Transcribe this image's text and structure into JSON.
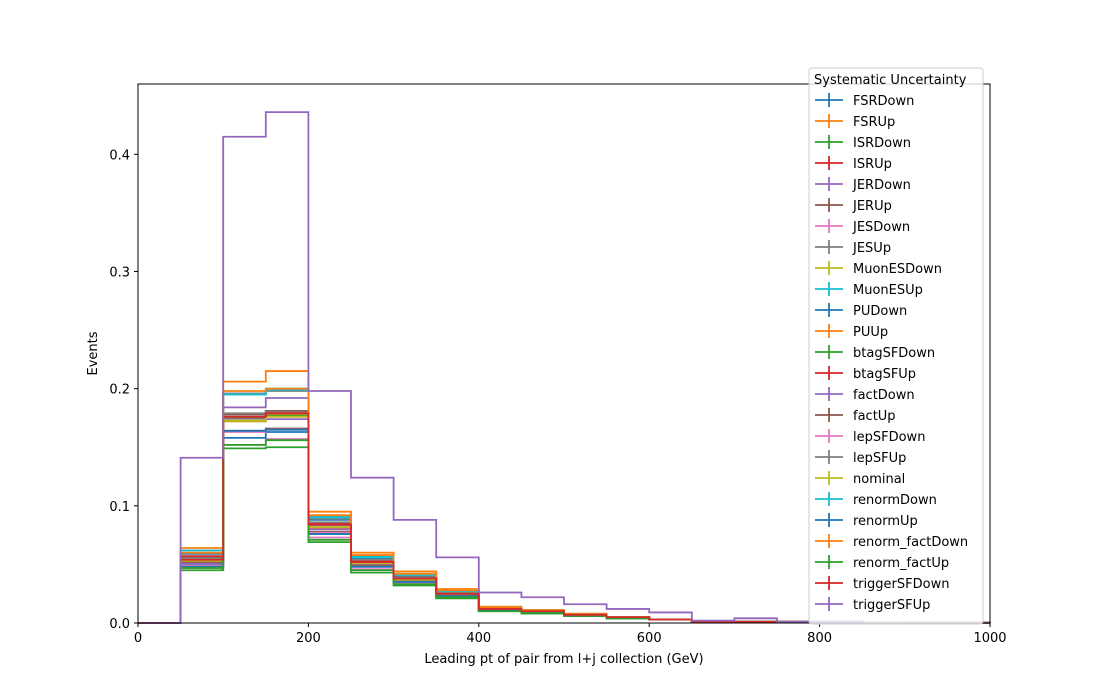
{
  "chart_data": {
    "type": "line",
    "title": "",
    "xlabel": "Leading pt of pair from l+j collection (GeV)",
    "ylabel": "Events",
    "xlim": [
      0,
      1000
    ],
    "ylim": [
      0,
      0.46
    ],
    "x_ticks": [
      0,
      200,
      400,
      600,
      800,
      1000
    ],
    "y_ticks": [
      0.0,
      0.1,
      0.2,
      0.3,
      0.4
    ],
    "x_tick_labels": [
      "0",
      "200",
      "400",
      "600",
      "800",
      "1000"
    ],
    "y_tick_labels": [
      "0.0",
      "0.1",
      "0.2",
      "0.3",
      "0.4"
    ],
    "bin_edges": [
      0,
      50,
      100,
      150,
      200,
      250,
      300,
      350,
      400,
      450,
      500,
      550,
      600,
      650,
      700,
      750,
      800,
      850,
      900,
      950,
      1000
    ],
    "legend": {
      "title": "Systematic Uncertainty",
      "placement": "top-right"
    },
    "grid": false,
    "series": [
      {
        "name": "FSRDown",
        "color": "#1f77b4",
        "values": [
          0,
          0.059,
          0.176,
          0.179,
          0.088,
          0.055,
          0.04,
          0.026,
          0.012,
          0.01,
          0.007,
          0.005,
          0.003,
          0.001,
          0.001,
          0.001,
          0.001,
          0.0005,
          0.0003,
          0.0002
        ]
      },
      {
        "name": "FSRUp",
        "color": "#ff7f0e",
        "values": [
          0,
          0.049,
          0.173,
          0.178,
          0.081,
          0.05,
          0.036,
          0.024,
          0.011,
          0.009,
          0.006,
          0.005,
          0.003,
          0.001,
          0.001,
          0.001,
          0.001,
          0.0005,
          0.0003,
          0.0002
        ]
      },
      {
        "name": "ISRDown",
        "color": "#2ca02c",
        "values": [
          0,
          0.054,
          0.175,
          0.177,
          0.084,
          0.052,
          0.038,
          0.025,
          0.012,
          0.01,
          0.007,
          0.005,
          0.003,
          0.001,
          0.001,
          0.001,
          0.001,
          0.0005,
          0.0003,
          0.0002
        ]
      },
      {
        "name": "ISRUp",
        "color": "#d62728",
        "values": [
          0,
          0.055,
          0.176,
          0.181,
          0.085,
          0.053,
          0.039,
          0.025,
          0.012,
          0.01,
          0.007,
          0.005,
          0.003,
          0.001,
          0.001,
          0.001,
          0.001,
          0.0005,
          0.0003,
          0.0002
        ]
      },
      {
        "name": "JERDown",
        "color": "#9467bd",
        "values": [
          0,
          0.052,
          0.184,
          0.192,
          0.083,
          0.052,
          0.038,
          0.025,
          0.012,
          0.01,
          0.007,
          0.005,
          0.003,
          0.001,
          0.001,
          0.001,
          0.001,
          0.0005,
          0.0003,
          0.0002
        ]
      },
      {
        "name": "JERUp",
        "color": "#8c564b",
        "values": [
          0,
          0.053,
          0.178,
          0.181,
          0.082,
          0.052,
          0.038,
          0.025,
          0.012,
          0.01,
          0.007,
          0.005,
          0.003,
          0.001,
          0.001,
          0.001,
          0.001,
          0.0005,
          0.0003,
          0.0002
        ]
      },
      {
        "name": "JESDown",
        "color": "#e377c2",
        "values": [
          0,
          0.047,
          0.152,
          0.157,
          0.073,
          0.046,
          0.034,
          0.022,
          0.011,
          0.009,
          0.006,
          0.004,
          0.003,
          0.001,
          0.001,
          0.001,
          0.001,
          0.0005,
          0.0003,
          0.0002
        ]
      },
      {
        "name": "JESUp",
        "color": "#7f7f7f",
        "values": [
          0,
          0.056,
          0.196,
          0.198,
          0.089,
          0.056,
          0.041,
          0.027,
          0.013,
          0.011,
          0.007,
          0.005,
          0.003,
          0.001,
          0.001,
          0.001,
          0.001,
          0.0005,
          0.0003,
          0.0002
        ]
      },
      {
        "name": "MuonESDown",
        "color": "#bcbd22",
        "values": [
          0,
          0.053,
          0.172,
          0.176,
          0.082,
          0.051,
          0.038,
          0.025,
          0.012,
          0.01,
          0.007,
          0.005,
          0.003,
          0.001,
          0.001,
          0.001,
          0.001,
          0.0005,
          0.0003,
          0.0002
        ]
      },
      {
        "name": "MuonESUp",
        "color": "#17becf",
        "values": [
          0,
          0.062,
          0.195,
          0.2,
          0.091,
          0.057,
          0.042,
          0.027,
          0.013,
          0.011,
          0.007,
          0.005,
          0.003,
          0.001,
          0.001,
          0.001,
          0.001,
          0.0005,
          0.0003,
          0.0002
        ]
      },
      {
        "name": "PUDown",
        "color": "#1f77b4",
        "values": [
          0,
          0.05,
          0.158,
          0.163,
          0.076,
          0.048,
          0.035,
          0.023,
          0.011,
          0.009,
          0.006,
          0.004,
          0.003,
          0.001,
          0.001,
          0.001,
          0.001,
          0.0005,
          0.0003,
          0.0002
        ]
      },
      {
        "name": "PUUp",
        "color": "#ff7f0e",
        "values": [
          0,
          0.064,
          0.206,
          0.215,
          0.095,
          0.06,
          0.044,
          0.029,
          0.014,
          0.011,
          0.008,
          0.005,
          0.003,
          0.001,
          0.001,
          0.001,
          0.001,
          0.0005,
          0.0003,
          0.0002
        ]
      },
      {
        "name": "btagSFDown",
        "color": "#2ca02c",
        "values": [
          0,
          0.045,
          0.149,
          0.15,
          0.069,
          0.043,
          0.032,
          0.021,
          0.01,
          0.008,
          0.006,
          0.004,
          0.003,
          0.001,
          0.001,
          0.001,
          0.001,
          0.0005,
          0.0003,
          0.0002
        ]
      },
      {
        "name": "btagSFUp",
        "color": "#d62728",
        "values": [
          0,
          0.057,
          0.173,
          0.18,
          0.085,
          0.053,
          0.039,
          0.025,
          0.012,
          0.01,
          0.007,
          0.005,
          0.003,
          0.001,
          0.001,
          0.001,
          0.001,
          0.0005,
          0.0003,
          0.0002
        ]
      },
      {
        "name": "factDown",
        "color": "#9467bd",
        "values": [
          0,
          0.051,
          0.174,
          0.174,
          0.08,
          0.05,
          0.037,
          0.024,
          0.011,
          0.009,
          0.007,
          0.005,
          0.003,
          0.001,
          0.001,
          0.001,
          0.001,
          0.0005,
          0.0003,
          0.0002
        ]
      },
      {
        "name": "factUp",
        "color": "#8c564b",
        "values": [
          0,
          0.052,
          0.164,
          0.166,
          0.078,
          0.049,
          0.036,
          0.024,
          0.011,
          0.009,
          0.006,
          0.004,
          0.003,
          0.001,
          0.001,
          0.001,
          0.001,
          0.0005,
          0.0003,
          0.0002
        ]
      },
      {
        "name": "lepSFDown",
        "color": "#e377c2",
        "values": [
          0,
          0.049,
          0.163,
          0.165,
          0.077,
          0.048,
          0.035,
          0.023,
          0.011,
          0.009,
          0.006,
          0.004,
          0.003,
          0.001,
          0.001,
          0.001,
          0.001,
          0.0005,
          0.0003,
          0.0002
        ]
      },
      {
        "name": "lepSFUp",
        "color": "#7f7f7f",
        "values": [
          0,
          0.055,
          0.179,
          0.18,
          0.086,
          0.054,
          0.039,
          0.026,
          0.012,
          0.01,
          0.007,
          0.005,
          0.003,
          0.001,
          0.001,
          0.001,
          0.001,
          0.0005,
          0.0003,
          0.0002
        ]
      },
      {
        "name": "nominal",
        "color": "#bcbd22",
        "values": [
          0,
          0.053,
          0.173,
          0.176,
          0.082,
          0.051,
          0.037,
          0.025,
          0.012,
          0.01,
          0.007,
          0.005,
          0.003,
          0.001,
          0.001,
          0.001,
          0.001,
          0.0005,
          0.0003,
          0.0002
        ]
      },
      {
        "name": "renormDown",
        "color": "#17becf",
        "values": [
          0,
          0.06,
          0.195,
          0.199,
          0.09,
          0.056,
          0.041,
          0.027,
          0.013,
          0.011,
          0.007,
          0.005,
          0.003,
          0.001,
          0.001,
          0.001,
          0.001,
          0.0005,
          0.0003,
          0.0002
        ]
      },
      {
        "name": "renormUp",
        "color": "#1f77b4",
        "values": [
          0,
          0.048,
          0.164,
          0.165,
          0.076,
          0.048,
          0.035,
          0.023,
          0.011,
          0.009,
          0.006,
          0.004,
          0.003,
          0.001,
          0.001,
          0.001,
          0.001,
          0.0005,
          0.0003,
          0.0002
        ]
      },
      {
        "name": "renorm_factDown",
        "color": "#ff7f0e",
        "values": [
          0,
          0.06,
          0.198,
          0.2,
          0.092,
          0.058,
          0.042,
          0.028,
          0.013,
          0.011,
          0.007,
          0.005,
          0.003,
          0.001,
          0.001,
          0.001,
          0.001,
          0.0005,
          0.0003,
          0.0002
        ]
      },
      {
        "name": "renorm_factUp",
        "color": "#2ca02c",
        "values": [
          0,
          0.047,
          0.152,
          0.156,
          0.071,
          0.045,
          0.033,
          0.022,
          0.01,
          0.009,
          0.006,
          0.004,
          0.003,
          0.001,
          0.001,
          0.001,
          0.001,
          0.0005,
          0.0003,
          0.0002
        ]
      },
      {
        "name": "triggerSFDown",
        "color": "#d62728",
        "values": [
          0,
          0.054,
          0.176,
          0.179,
          0.084,
          0.052,
          0.038,
          0.025,
          0.012,
          0.01,
          0.007,
          0.005,
          0.003,
          0.001,
          0.001,
          0.001,
          0.001,
          0.0005,
          0.0003,
          0.0002
        ]
      },
      {
        "name": "triggerSFUp",
        "color": "#9467bd",
        "values": [
          0,
          0.141,
          0.415,
          0.436,
          0.198,
          0.124,
          0.088,
          0.056,
          0.026,
          0.022,
          0.016,
          0.012,
          0.009,
          0.002,
          0.004,
          0.001,
          0.001,
          0.0005,
          0.0003,
          0.0002
        ]
      }
    ]
  }
}
